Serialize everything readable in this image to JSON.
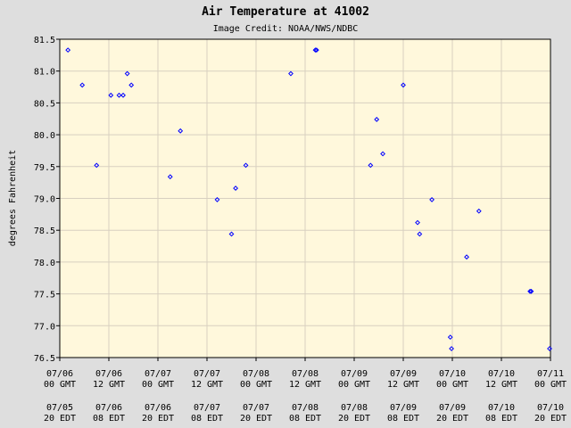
{
  "chart_data": {
    "type": "scatter",
    "title": "Air Temperature at 41002",
    "subtitle": "Image Credit: NOAA/NWS/NDBC",
    "ylabel": "degrees Fahrenheit",
    "xlabel": "",
    "ylim": [
      76.5,
      81.5
    ],
    "yticks": [
      76.5,
      77.0,
      77.5,
      78.0,
      78.5,
      79.0,
      79.5,
      80.0,
      80.5,
      81.0,
      81.5
    ],
    "ytick_labels": [
      "76.5",
      "77.0",
      "77.5",
      "78.0",
      "78.5",
      "79.0",
      "79.5",
      "80.0",
      "80.5",
      "81.0",
      "81.5"
    ],
    "xlim": [
      0,
      120
    ],
    "x_unit": "hours since 07/06 00 GMT",
    "xtick_labels_gmt": [
      [
        "07/06",
        "00 GMT"
      ],
      [
        "07/06",
        "12 GMT"
      ],
      [
        "07/07",
        "00 GMT"
      ],
      [
        "07/07",
        "12 GMT"
      ],
      [
        "07/08",
        "00 GMT"
      ],
      [
        "07/08",
        "12 GMT"
      ],
      [
        "07/09",
        "00 GMT"
      ],
      [
        "07/09",
        "12 GMT"
      ],
      [
        "07/10",
        "00 GMT"
      ],
      [
        "07/10",
        "12 GMT"
      ],
      [
        "07/11",
        "00 GMT"
      ]
    ],
    "xtick_labels_edt": [
      [
        "07/05",
        "20 EDT"
      ],
      [
        "07/06",
        "08 EDT"
      ],
      [
        "07/06",
        "20 EDT"
      ],
      [
        "07/07",
        "08 EDT"
      ],
      [
        "07/07",
        "20 EDT"
      ],
      [
        "07/08",
        "08 EDT"
      ],
      [
        "07/08",
        "20 EDT"
      ],
      [
        "07/09",
        "08 EDT"
      ],
      [
        "07/09",
        "20 EDT"
      ],
      [
        "07/10",
        "08 EDT"
      ],
      [
        "07/10",
        "20 EDT"
      ]
    ],
    "grid": true,
    "legend": "none",
    "colors": {
      "background": "#dedede",
      "plot": "#fff8dc",
      "grid": "#d8d0c0",
      "points": "#0000ff"
    },
    "series": [
      {
        "x": [
          2.0,
          5.5,
          9.0,
          12.5,
          14.5,
          15.5,
          16.5,
          17.5,
          27.0,
          29.5,
          38.5,
          42.0,
          43.0,
          45.5,
          56.5,
          62.5,
          62.8,
          76.0,
          77.5,
          79.0,
          84.0,
          87.5,
          88.0,
          91.0,
          95.5,
          95.8,
          99.5,
          102.5,
          115.0,
          115.3,
          122.0
        ],
        "y": [
          81.33,
          80.78,
          79.52,
          80.62,
          80.62,
          80.62,
          80.96,
          80.78,
          79.34,
          80.06,
          78.98,
          78.44,
          79.16,
          79.52,
          80.96,
          81.33,
          81.33,
          79.52,
          80.24,
          79.7,
          80.78,
          78.62,
          78.44,
          78.98,
          76.82,
          76.64,
          78.08,
          78.8,
          77.54,
          77.54,
          76.64
        ]
      }
    ]
  }
}
